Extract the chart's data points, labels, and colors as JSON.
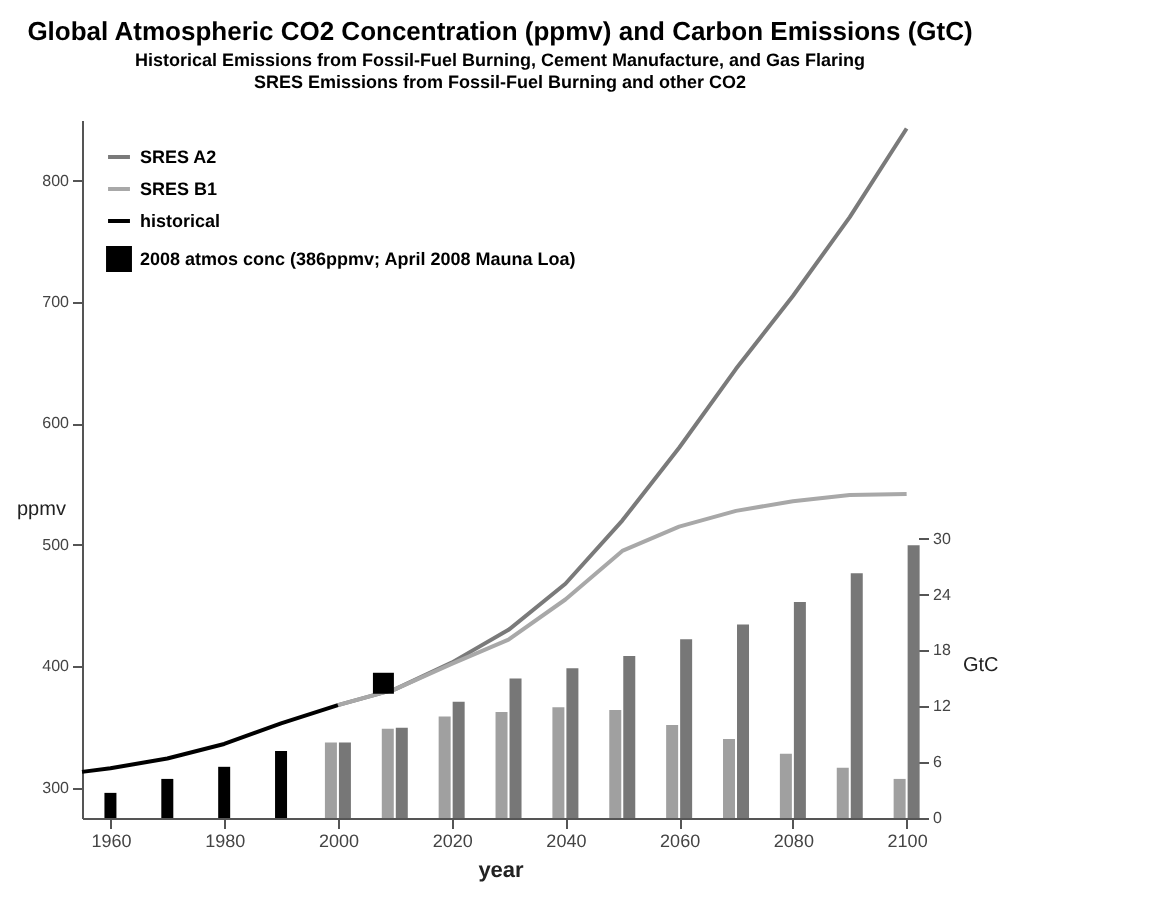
{
  "chart_data": {
    "type": "line",
    "title": "Global Atmospheric CO2 Concentration (ppmv) and Carbon Emissions (GtC)",
    "subtitle": [
      "Historical Emissions from Fossil-Fuel Burning, Cement Manufacture, and Gas Flaring",
      "SRES Emissions from Fossil-Fuel Burning and other CO2"
    ],
    "xlabel": "year",
    "ylabel": "ppmv",
    "y2label": "GtC",
    "xlim": [
      1955,
      2102
    ],
    "xticks": [
      1960,
      1980,
      2000,
      2020,
      2040,
      2060,
      2080,
      2100
    ],
    "ylim": [
      275,
      850
    ],
    "yticks": [
      300,
      400,
      500,
      600,
      700,
      800
    ],
    "y2lim": [
      0,
      75
    ],
    "y2ticks": [
      0,
      6,
      12,
      18,
      24,
      30
    ],
    "legend": "top left",
    "grid": false,
    "line_style": "solid",
    "series": [
      {
        "name": "SRES A2",
        "color": "#7a7a7a",
        "x": [
          2000,
          2010,
          2020,
          2030,
          2040,
          2050,
          2060,
          2070,
          2080,
          2090,
          2100
        ],
        "values": [
          368,
          381,
          403,
          430,
          468,
          520,
          580,
          645,
          705,
          770,
          843
        ]
      },
      {
        "name": "SRES B1",
        "color": "#a8a8a8",
        "x": [
          2000,
          2010,
          2020,
          2030,
          2040,
          2050,
          2060,
          2070,
          2080,
          2090,
          2100
        ],
        "values": [
          368,
          381,
          402,
          422,
          455,
          495,
          515,
          528,
          536,
          541,
          542
        ]
      },
      {
        "name": "historical",
        "color": "#000000",
        "x": [
          1955,
          1960,
          1970,
          1980,
          1990,
          2000
        ],
        "values": [
          313,
          316,
          324,
          336,
          353,
          368
        ]
      },
      {
        "name": "2008 atmos conc (386ppmv; April 2008 Mauna Loa)",
        "type": "scatter",
        "marker": "square",
        "color": "#000000",
        "x": [
          2008
        ],
        "values": [
          386
        ]
      },
      {
        "type": "bar",
        "axis": "y2",
        "color": "#000000",
        "x": [
          1960,
          1970,
          1980,
          1990
        ],
        "values": [
          2.7,
          4.2,
          5.5,
          7.2
        ]
      },
      {
        "type": "bar",
        "axis": "y2",
        "color": "#a0a0a0",
        "x": [
          2000,
          2010,
          2020,
          2030,
          2040,
          2050,
          2060,
          2070,
          2080,
          2090,
          2100
        ],
        "values": [
          8.1,
          9.6,
          10.9,
          11.4,
          11.9,
          11.6,
          10.0,
          8.5,
          6.9,
          5.4,
          4.2
        ]
      },
      {
        "type": "bar",
        "axis": "y2",
        "color": "#777777",
        "x": [
          2000,
          2010,
          2020,
          2030,
          2040,
          2050,
          2060,
          2070,
          2080,
          2090,
          2100
        ],
        "values": [
          8.1,
          9.7,
          12.5,
          15.0,
          16.1,
          17.4,
          19.2,
          20.8,
          23.2,
          26.3,
          29.3
        ]
      }
    ]
  }
}
